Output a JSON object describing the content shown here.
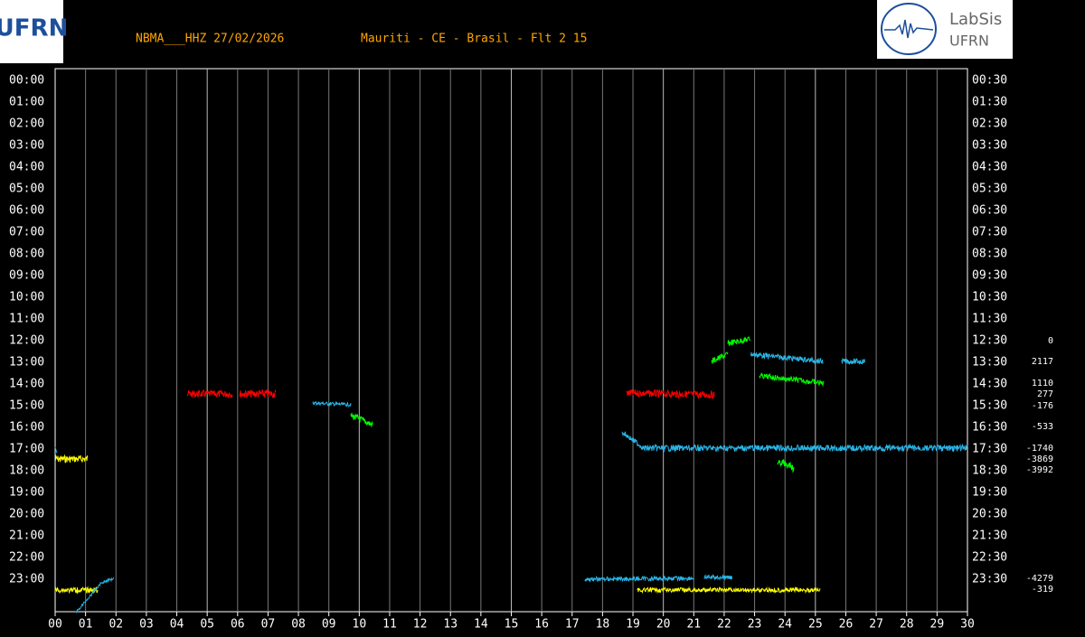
{
  "header": {
    "station": "NBMA___HHZ 27/02/2026",
    "location": "Mauriti - CE - Brasil - Flt 2 15"
  },
  "logo_left": {
    "text": "UFRN"
  },
  "logo_right": {
    "title": "LabSis",
    "subtitle": "UFRN"
  },
  "left_labels": [
    "00:00",
    "01:00",
    "02:00",
    "03:00",
    "04:00",
    "05:00",
    "06:00",
    "07:00",
    "08:00",
    "09:00",
    "10:00",
    "11:00",
    "12:00",
    "13:00",
    "14:00",
    "15:00",
    "16:00",
    "17:00",
    "18:00",
    "19:00",
    "20:00",
    "21:00",
    "22:00",
    "23:00"
  ],
  "right_labels": [
    "00:30",
    "01:30",
    "02:30",
    "03:30",
    "04:30",
    "05:30",
    "06:30",
    "07:30",
    "08:30",
    "09:30",
    "10:30",
    "11:30",
    "12:30",
    "13:30",
    "14:30",
    "15:30",
    "16:30",
    "17:30",
    "18:30",
    "19:30",
    "20:30",
    "21:30",
    "22:30",
    "23:30"
  ],
  "x_labels": [
    "00",
    "01",
    "02",
    "03",
    "04",
    "05",
    "06",
    "07",
    "08",
    "09",
    "10",
    "11",
    "12",
    "13",
    "14",
    "15",
    "16",
    "17",
    "18",
    "19",
    "20",
    "21",
    "22",
    "23",
    "24",
    "25",
    "26",
    "27",
    "28",
    "29",
    "30"
  ],
  "side_values": [
    0,
    2117,
    1110,
    277,
    -176,
    -533,
    -1740,
    -3869,
    -3992,
    -4279,
    -319
  ]
}
